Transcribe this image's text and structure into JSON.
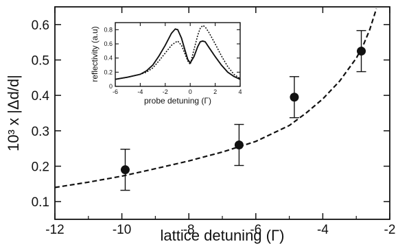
{
  "chart_data": [
    {
      "type": "scatter",
      "panel": "main",
      "xlabel": "lattice detuning (Γ)",
      "ylabel": "10³ x |Δd/d|",
      "xlim": [
        -12,
        -2
      ],
      "ylim": [
        0.05,
        0.65
      ],
      "xticks": [
        "-12",
        "-10",
        "-8",
        "-6",
        "-4",
        "-2"
      ],
      "yticks": [
        "0.1",
        "0.2",
        "0.3",
        "0.4",
        "0.5",
        "0.6"
      ],
      "grid": false,
      "series": [
        {
          "kind": "points-with-error-bars",
          "x": [
            -9.9,
            -6.5,
            -4.85,
            -2.85
          ],
          "y": [
            0.19,
            0.26,
            0.395,
            0.525
          ],
          "yerr": [
            0.058,
            0.058,
            0.058,
            0.058
          ],
          "marker": "filled-circle"
        },
        {
          "kind": "dashed-curve",
          "x": [
            -12,
            -11,
            -10,
            -9,
            -8,
            -7,
            -6,
            -5,
            -4.5,
            -4,
            -3.5,
            -3,
            -2.8,
            -2.6,
            -2.4
          ],
          "y": [
            0.14,
            0.155,
            0.172,
            0.193,
            0.215,
            0.24,
            0.27,
            0.315,
            0.35,
            0.39,
            0.44,
            0.505,
            0.54,
            0.585,
            0.645
          ]
        }
      ]
    },
    {
      "type": "line",
      "panel": "inset",
      "xlabel": "probe detuning (Γ)",
      "ylabel": "reflectivity (a.u)",
      "xlim": [
        -6,
        4
      ],
      "ylim": [
        0,
        0.9
      ],
      "xticks": [
        "-6",
        "-4",
        "-2",
        "0",
        "2",
        "4"
      ],
      "yticks": [
        "0",
        "0.2",
        "0.4",
        "0.6",
        "0.8"
      ],
      "grid": false,
      "series": [
        {
          "style": "solid",
          "x": [
            -6,
            -5,
            -4,
            -3.5,
            -3,
            -2.5,
            -2,
            -1.5,
            -1.2,
            -1,
            -0.7,
            -0.4,
            -0.2,
            0,
            0.3,
            0.6,
            0.8,
            1,
            1.2,
            1.5,
            2,
            2.5,
            3,
            3.5,
            4
          ],
          "y": [
            0.1,
            0.13,
            0.17,
            0.22,
            0.3,
            0.43,
            0.58,
            0.75,
            0.81,
            0.8,
            0.68,
            0.5,
            0.38,
            0.33,
            0.42,
            0.56,
            0.63,
            0.64,
            0.63,
            0.55,
            0.42,
            0.3,
            0.2,
            0.14,
            0.1
          ]
        },
        {
          "style": "dotted",
          "x": [
            -6,
            -5,
            -4,
            -3.5,
            -3,
            -2.5,
            -2,
            -1.5,
            -1.2,
            -1,
            -0.7,
            -0.4,
            -0.2,
            0,
            0.3,
            0.6,
            0.8,
            1,
            1.2,
            1.5,
            2,
            2.5,
            3,
            3.5,
            4
          ],
          "y": [
            0.1,
            0.13,
            0.17,
            0.2,
            0.26,
            0.36,
            0.47,
            0.58,
            0.62,
            0.64,
            0.58,
            0.45,
            0.36,
            0.31,
            0.52,
            0.72,
            0.82,
            0.86,
            0.84,
            0.76,
            0.6,
            0.43,
            0.28,
            0.17,
            0.11
          ]
        }
      ]
    }
  ]
}
